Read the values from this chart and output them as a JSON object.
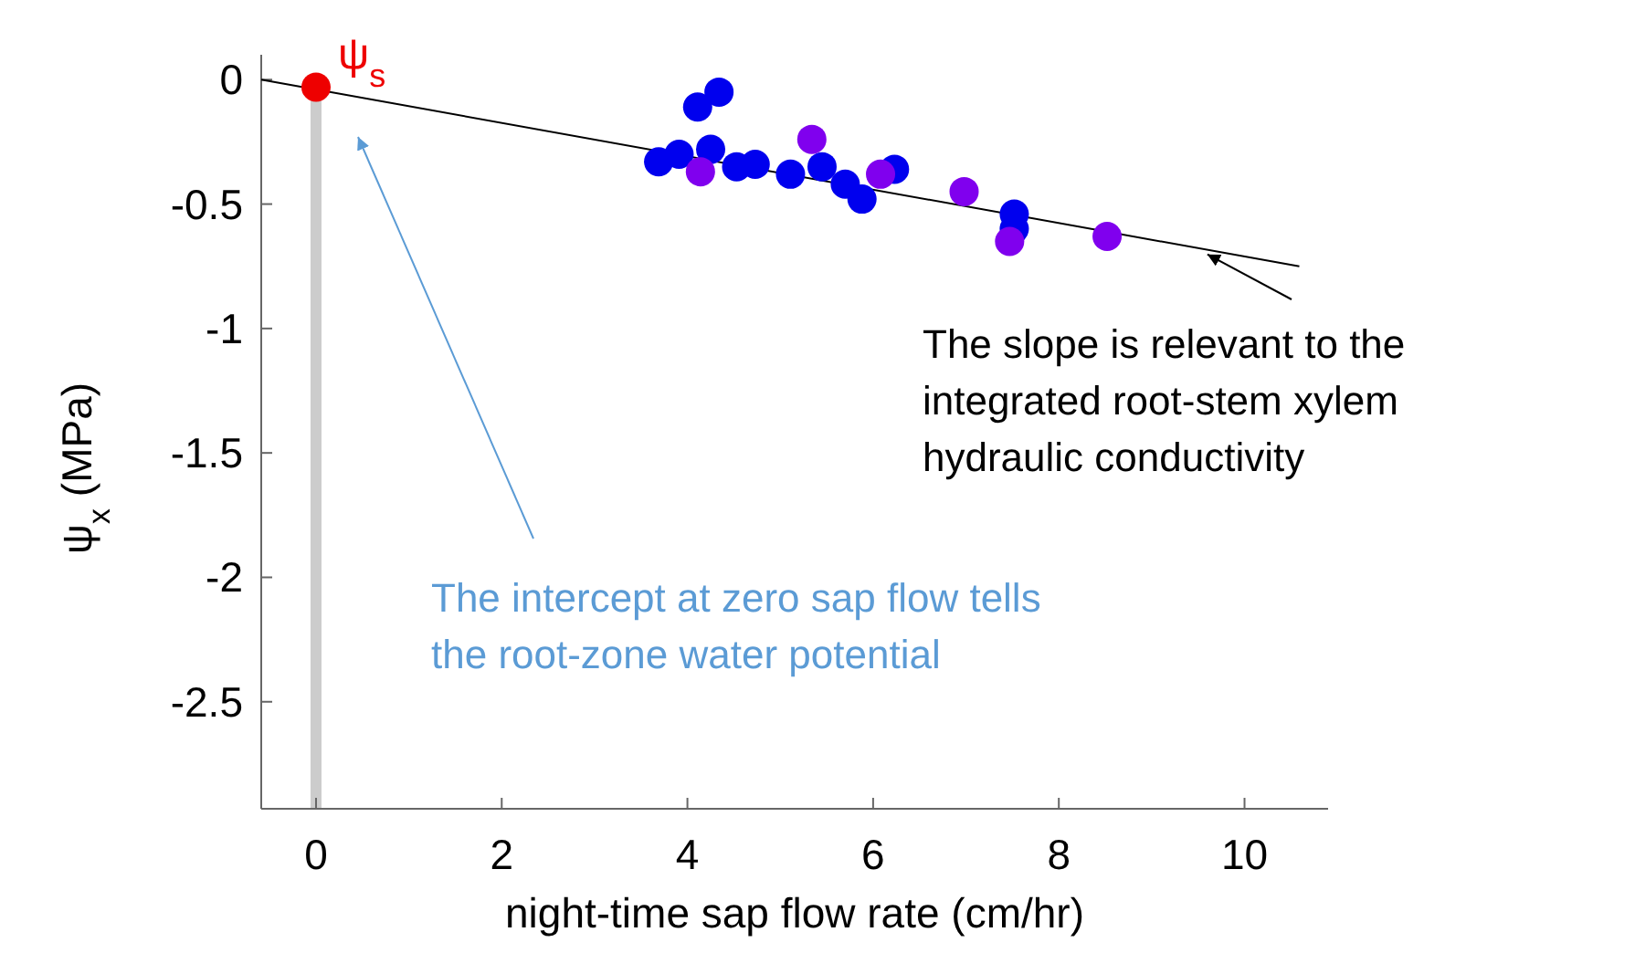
{
  "chart_data": {
    "type": "scatter",
    "xlabel": "night-time sap flow rate (cm/hr)",
    "ylabel": "ψ$_{x}$ (MPa)",
    "xlim": [
      -0.59,
      10.9
    ],
    "ylim": [
      -2.93,
      0.1
    ],
    "xticks": [
      0,
      2,
      4,
      6,
      8,
      10
    ],
    "yticks": [
      0,
      -0.5,
      -1,
      -1.5,
      -2,
      -2.5
    ],
    "grid": false,
    "marker": "circle",
    "series": [
      {
        "type": "line",
        "marker": "none",
        "color": "#000000",
        "x": [
          -0.59,
          10.59
        ],
        "values": [
          0,
          -0.75
        ]
      },
      {
        "color": "#0000ee",
        "x": [
          3.69,
          3.91,
          4.11,
          4.34,
          4.25,
          4.53,
          4.73,
          5.11,
          5.45,
          5.7,
          5.88,
          6.23,
          7.52,
          7.52
        ],
        "values": [
          -0.33,
          -0.3,
          -0.11,
          -0.05,
          -0.28,
          -0.35,
          -0.34,
          -0.38,
          -0.35,
          -0.42,
          -0.48,
          -0.36,
          -0.54,
          -0.6
        ]
      },
      {
        "color": "#8000ee",
        "x": [
          4.14,
          5.34,
          6.08,
          6.98,
          7.47,
          8.52
        ],
        "values": [
          -0.37,
          -0.24,
          -0.38,
          -0.45,
          -0.65,
          -0.63
        ]
      },
      {
        "name": "ψ$_{s}$",
        "color": "#ee0000",
        "x": [
          0
        ],
        "values": [
          -0.03
        ]
      }
    ],
    "ref_lines": [
      {
        "axis": "x",
        "value": 0,
        "color": "#cccccc"
      }
    ],
    "annotations": [
      {
        "text": "The slope is relevant to the integrated root-stem xylem hydraulic conductivity",
        "x": 9.6,
        "y": -0.68
      },
      "The intercept at zero sap flow tells the root-zone water potential"
    ]
  }
}
